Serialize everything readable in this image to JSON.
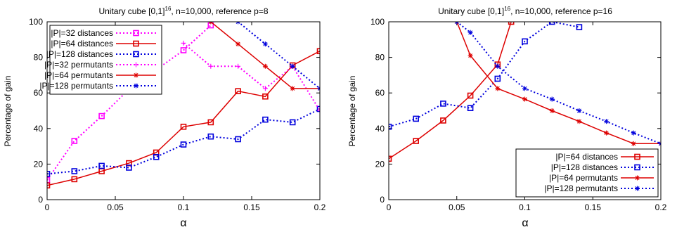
{
  "chart_data": [
    {
      "type": "line",
      "title_main": "Unitary cube [0,1]",
      "title_sup": "16",
      "title_rest": ", n=10,000, reference p=8",
      "xlabel": "α",
      "ylabel": "Percentage of gain",
      "xlim": [
        0,
        0.2
      ],
      "ylim": [
        0,
        100
      ],
      "xticks": [
        0,
        0.05,
        0.1,
        0.15,
        0.2
      ],
      "xtick_labels": [
        "0",
        "0.05",
        "0.1",
        "0.15",
        "0.2"
      ],
      "yticks": [
        0,
        20,
        40,
        60,
        80,
        100
      ],
      "ytick_labels": [
        "0",
        "20",
        "40",
        "60",
        "80",
        "100"
      ],
      "legend_position": "top-left",
      "series": [
        {
          "name": "|P|=32 distances",
          "color": "#ff00ff",
          "dash": "dotted",
          "marker": "square",
          "x": [
            0,
            0.02,
            0.04,
            0.06,
            0.08,
            0.1,
            0.12
          ],
          "y": [
            11,
            33,
            47,
            62,
            73,
            84,
            98
          ]
        },
        {
          "name": "|P|=64 distances",
          "color": "#dd0000",
          "dash": "solid",
          "marker": "square",
          "x": [
            0,
            0.02,
            0.04,
            0.06,
            0.08,
            0.1,
            0.12,
            0.14,
            0.16,
            0.18,
            0.2
          ],
          "y": [
            8,
            11.5,
            16,
            20.5,
            26.5,
            41,
            43.5,
            61,
            58,
            75.5,
            83.5
          ]
        },
        {
          "name": "|P|=128 distances",
          "color": "#0000dd",
          "dash": "dotted",
          "marker": "square",
          "x": [
            0,
            0.02,
            0.04,
            0.06,
            0.08,
            0.1,
            0.12,
            0.14,
            0.16,
            0.18,
            0.2
          ],
          "y": [
            14.5,
            16,
            19,
            18,
            24,
            31,
            35.5,
            34,
            45,
            43.5,
            51
          ]
        },
        {
          "name": "|P|=32 permutants",
          "color": "#ff00ff",
          "dash": "dotted",
          "marker": "plus",
          "x": [
            0.1,
            0.12,
            0.14,
            0.16,
            0.18,
            0.2
          ],
          "y": [
            88,
            75,
            75,
            62.5,
            75,
            50
          ]
        },
        {
          "name": "|P|=64 permutants",
          "color": "#dd0000",
          "dash": "solid",
          "marker": "star",
          "x": [
            0.12,
            0.14,
            0.16,
            0.18,
            0.2
          ],
          "y": [
            100,
            87.5,
            75,
            62.5,
            62.5
          ]
        },
        {
          "name": "|P|=128 permutants",
          "color": "#0000dd",
          "dash": "dotted",
          "marker": "star",
          "x": [
            0.14,
            0.16,
            0.18,
            0.2
          ],
          "y": [
            100,
            87.5,
            75,
            62.5
          ]
        }
      ]
    },
    {
      "type": "line",
      "title_main": "Unitary cube [0,1]",
      "title_sup": "16",
      "title_rest": ", n=10,000, reference p=16",
      "xlabel": "α",
      "ylabel": "Percentage of gain",
      "xlim": [
        0,
        0.2
      ],
      "ylim": [
        0,
        100
      ],
      "xticks": [
        0,
        0.05,
        0.1,
        0.15,
        0.2
      ],
      "xtick_labels": [
        "0",
        "0.05",
        "0.1",
        "0.15",
        "0.2"
      ],
      "yticks": [
        0,
        20,
        40,
        60,
        80,
        100
      ],
      "ytick_labels": [
        "0",
        "20",
        "40",
        "60",
        "80",
        "100"
      ],
      "legend_position": "bottom-right",
      "series": [
        {
          "name": "|P|=64 distances",
          "color": "#dd0000",
          "dash": "solid",
          "marker": "square",
          "x": [
            0,
            0.02,
            0.04,
            0.06,
            0.08,
            0.09
          ],
          "y": [
            23,
            33,
            44.5,
            58.5,
            76,
            100
          ]
        },
        {
          "name": "|P|=128 distances",
          "color": "#0000dd",
          "dash": "dotted",
          "marker": "square",
          "x": [
            0,
            0.02,
            0.04,
            0.06,
            0.08,
            0.1,
            0.12,
            0.14
          ],
          "y": [
            41,
            45.5,
            54,
            51.5,
            68,
            89,
            100,
            97
          ]
        },
        {
          "name": "|P|=64 permutants",
          "color": "#dd0000",
          "dash": "solid",
          "marker": "star",
          "x": [
            0.05,
            0.06,
            0.08,
            0.1,
            0.12,
            0.14,
            0.16,
            0.18,
            0.2
          ],
          "y": [
            100,
            81,
            62.5,
            56.5,
            50,
            44,
            37.5,
            31.5,
            31.5
          ]
        },
        {
          "name": "|P|=128 permutants",
          "color": "#0000dd",
          "dash": "dotted",
          "marker": "star",
          "x": [
            0.05,
            0.06,
            0.08,
            0.1,
            0.12,
            0.14,
            0.16,
            0.18,
            0.2
          ],
          "y": [
            100,
            94,
            75,
            62.5,
            56.5,
            50,
            44,
            37.5,
            31.5
          ]
        }
      ]
    }
  ]
}
